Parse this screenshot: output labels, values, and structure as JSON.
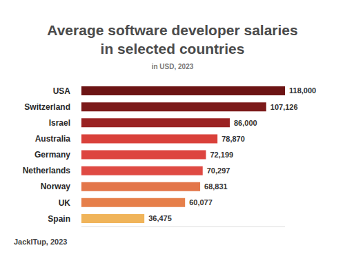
{
  "chart_data": {
    "type": "bar",
    "orientation": "horizontal",
    "title": "Average software developer salaries in selected countries",
    "subtitle": "in USD, 2023",
    "annotations": [
      "JackITup, 2023"
    ],
    "categories": [
      "USA",
      "Switzerland",
      "Israel",
      "Australia",
      "Germany",
      "Netherlands",
      "Norway",
      "UK",
      "Spain"
    ],
    "values": [
      118000,
      107126,
      86000,
      78870,
      72199,
      70297,
      68831,
      60077,
      36475
    ],
    "value_labels": [
      "118,000",
      "107,126",
      "86,000",
      "78,870",
      "72,199",
      "70,297",
      "68,831",
      "60,077",
      "36,475"
    ],
    "colors": [
      "#6c1414",
      "#7c1a1a",
      "#9a2222",
      "#d9403a",
      "#dd443f",
      "#df4a43",
      "#e3764a",
      "#e67f4a",
      "#f0b45a"
    ],
    "xlim": [
      0,
      118000
    ],
    "xticks": [],
    "grid": false,
    "data_labels": true,
    "tick_labels": "y"
  }
}
